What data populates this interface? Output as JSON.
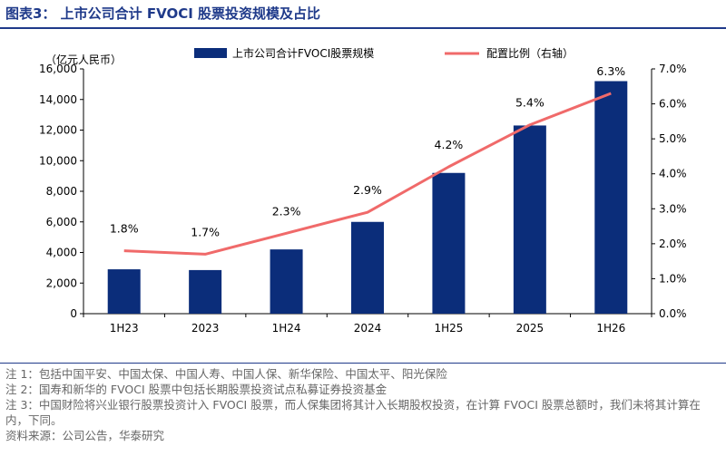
{
  "title": "图表3：  上市公司合计 FVOCI 股票投资规模及占比",
  "chart_data": {
    "type": "bar+line",
    "categories": [
      "1H23",
      "2023",
      "1H24",
      "2024",
      "1H25",
      "2025",
      "1H26"
    ],
    "series": [
      {
        "name": "上市公司合计FVOCI股票规模",
        "kind": "bar",
        "axis": "left",
        "color": "#0b2d7a",
        "values": [
          2900,
          2850,
          4200,
          6000,
          9200,
          12300,
          15200
        ]
      },
      {
        "name": "配置比例（右轴）",
        "kind": "line",
        "axis": "right",
        "color": "#f06a6a",
        "values": [
          1.8,
          1.7,
          2.3,
          2.9,
          4.2,
          5.4,
          6.3
        ],
        "labels": [
          "1.8%",
          "1.7%",
          "2.3%",
          "2.9%",
          "4.2%",
          "5.4%",
          "6.3%"
        ]
      }
    ],
    "left_axis": {
      "unit_label": "（亿元人民币）",
      "range": [
        0,
        16000
      ],
      "ticks": [
        0,
        2000,
        4000,
        6000,
        8000,
        10000,
        12000,
        14000,
        16000
      ],
      "tick_labels": [
        "0",
        "2,000",
        "4,000",
        "6,000",
        "8,000",
        "10,000",
        "12,000",
        "14,000",
        "16,000"
      ]
    },
    "right_axis": {
      "range": [
        0,
        7
      ],
      "ticks": [
        0,
        1,
        2,
        3,
        4,
        5,
        6,
        7
      ],
      "tick_labels": [
        "0.0%",
        "1.0%",
        "2.0%",
        "3.0%",
        "4.0%",
        "5.0%",
        "6.0%",
        "7.0%"
      ]
    },
    "legend_position": "top",
    "grid": false
  },
  "notes": [
    "注 1：包括中国平安、中国太保、中国人寿、中国人保、新华保险、中国太平、阳光保险",
    "注 2：国寿和新华的 FVOCI 股票中包括长期股票投资试点私募证券投资基金",
    "注 3：中国财险将兴业银行股票投资计入 FVOCI 股票，而人保集团将其计入长期股权投资，在计算 FVOCI 股票总额时，我们未将其计算在内，下同。",
    "资料来源：公司公告，华泰研究"
  ]
}
